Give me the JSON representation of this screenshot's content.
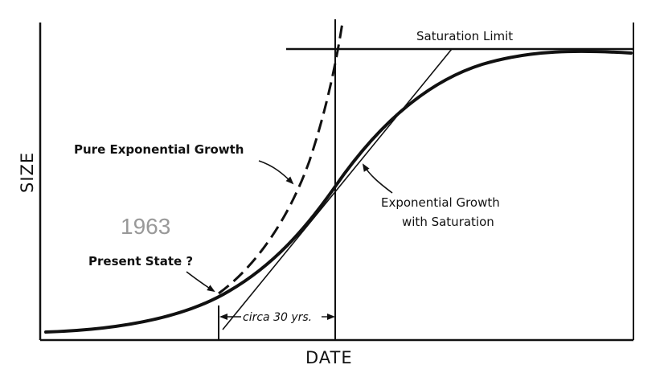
{
  "labels": {
    "saturation_limit": "Saturation Limit",
    "pure_exponential": "Pure Exponential Growth",
    "exp_saturation_line1": "Exponential Growth",
    "exp_saturation_line2": "with Saturation",
    "present_state": "Present State  ?",
    "year": "1963",
    "interval": "circa 30 yrs.",
    "x_axis": "DATE",
    "y_axis": "SIZE"
  },
  "colors": {
    "ink": "#111111",
    "year_text": "#999999",
    "background": "#ffffff"
  }
}
